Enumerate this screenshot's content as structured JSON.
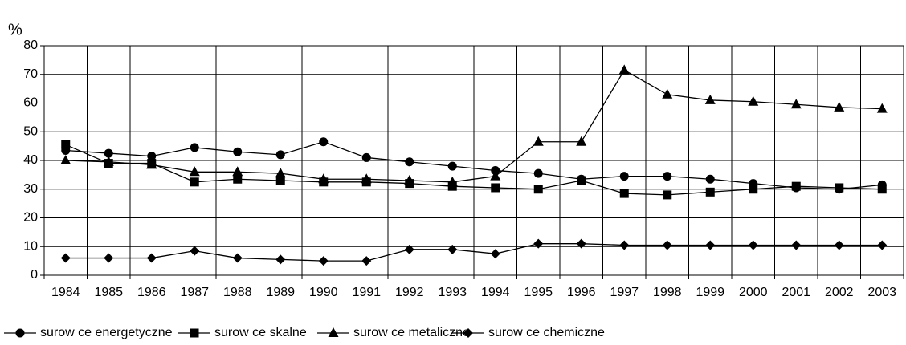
{
  "chart_data": {
    "type": "line",
    "y_label": "%",
    "categories": [
      "1984",
      "1985",
      "1986",
      "1987",
      "1988",
      "1989",
      "1990",
      "1991",
      "1992",
      "1993",
      "1994",
      "1995",
      "1996",
      "1997",
      "1998",
      "1999",
      "2000",
      "2001",
      "2002",
      "2003"
    ],
    "series": [
      {
        "name": "surow ce energetyczne",
        "color": "#000000",
        "marker": "circle",
        "values": [
          43.5,
          42.5,
          41.5,
          44.5,
          43,
          42,
          46.5,
          41,
          39.5,
          38,
          36.5,
          35.5,
          33.5,
          34.5,
          34.5,
          33.5,
          32,
          30.5,
          30,
          31.5
        ]
      },
      {
        "name": "surow ce skalne",
        "color": "#000000",
        "marker": "square",
        "values": [
          45.5,
          39,
          39,
          32.5,
          33.5,
          33,
          32.5,
          32.5,
          32,
          31,
          30.5,
          30,
          33,
          28.5,
          28,
          29,
          30,
          31,
          30.5,
          30
        ]
      },
      {
        "name": "surow ce metaliczne",
        "color": "#000000",
        "marker": "triangle",
        "values": [
          40,
          39.5,
          38.5,
          36,
          36,
          35.5,
          33.5,
          33.5,
          33,
          32.5,
          34.5,
          46.5,
          46.5,
          71.5,
          63,
          61,
          60.5,
          59.5,
          58.5,
          58
        ]
      },
      {
        "name": "surow ce chemiczne",
        "color": "#000000",
        "marker": "diamond",
        "values": [
          6,
          6,
          6,
          8.5,
          6,
          5.5,
          5,
          5,
          9,
          9,
          7.5,
          11,
          11,
          10.5,
          10.5,
          10.5,
          10.5,
          10.5,
          10.5,
          10.5
        ]
      }
    ],
    "ylim": [
      0,
      80
    ],
    "yticks": [
      0,
      10,
      20,
      30,
      40,
      50,
      60,
      70,
      80
    ],
    "grid": true,
    "legend": "bottom"
  }
}
